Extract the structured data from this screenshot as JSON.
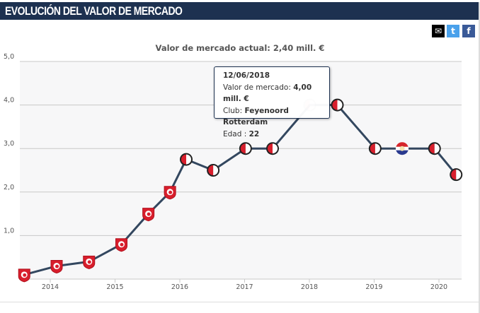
{
  "header": {
    "title": "EVOLUCIÓN DEL VALOR DE MERCADO"
  },
  "share": {
    "email_icon": "envelope-icon",
    "twitter_icon": "twitter-icon",
    "facebook_icon": "facebook-icon",
    "colors": {
      "email": "#000000",
      "twitter": "#4aa1eb",
      "facebook": "#3a5a98"
    }
  },
  "subtitle": "Valor de mercado actual: 2,40 mill. €",
  "tooltip": {
    "date": "12/06/2018",
    "value_label": "Valor de mercado:",
    "value": "4,00 mill. €",
    "club_label": "Club:",
    "club": "Feyenoord Rotterdam",
    "age_label": "Edad :",
    "age": "22"
  },
  "chart_data": {
    "type": "line",
    "title": "",
    "xlabel": "",
    "ylabel": "",
    "ylim": [
      0,
      5
    ],
    "yticks": [
      "1,0",
      "2,0",
      "3,0",
      "4,0",
      "5,0"
    ],
    "xticks": [
      "2014",
      "2015",
      "2016",
      "2017",
      "2018",
      "2019",
      "2020"
    ],
    "grid": true,
    "line_color": "#33475f",
    "plot_background": "#f7f7f8",
    "series": [
      {
        "points": [
          {
            "x": "2014-01",
            "y": 0.1,
            "club": "FC Twente"
          },
          {
            "x": "2014-07",
            "y": 0.3,
            "club": "FC Twente"
          },
          {
            "x": "2015-01",
            "y": 0.4,
            "club": "FC Twente"
          },
          {
            "x": "2015-07",
            "y": 0.8,
            "club": "FC Twente"
          },
          {
            "x": "2015-12",
            "y": 1.5,
            "club": "FC Twente"
          },
          {
            "x": "2016-04",
            "y": 2.0,
            "club": "FC Twente"
          },
          {
            "x": "2016-07",
            "y": 2.75,
            "club": "Feyenoord Rotterdam"
          },
          {
            "x": "2016-12",
            "y": 2.5,
            "club": "Feyenoord Rotterdam"
          },
          {
            "x": "2017-06",
            "y": 3.0,
            "club": "Feyenoord Rotterdam"
          },
          {
            "x": "2017-11",
            "y": 3.0,
            "club": "Feyenoord Rotterdam"
          },
          {
            "x": "2018-06-12",
            "y": 4.0,
            "club": "Feyenoord Rotterdam",
            "highlighted": true
          },
          {
            "x": "2018-11",
            "y": 4.0,
            "club": "Feyenoord Rotterdam"
          },
          {
            "x": "2019-06",
            "y": 3.0,
            "club": "Feyenoord Rotterdam"
          },
          {
            "x": "2019-11",
            "y": 3.0,
            "club": "Willem II"
          },
          {
            "x": "2020-05",
            "y": 3.0,
            "club": "Feyenoord Rotterdam"
          },
          {
            "x": "2020-09",
            "y": 2.4,
            "club": "Feyenoord Rotterdam"
          }
        ]
      }
    ]
  }
}
